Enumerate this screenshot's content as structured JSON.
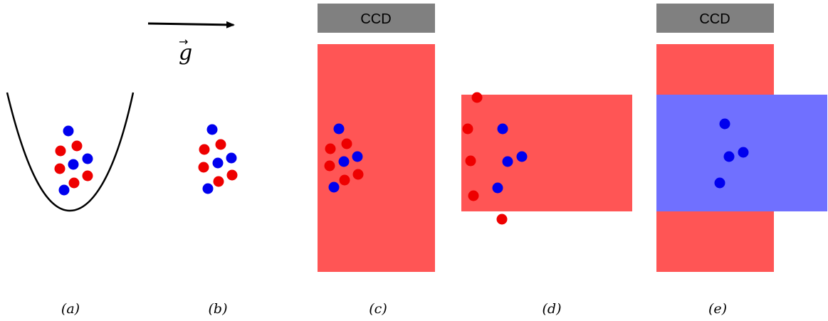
{
  "colors": {
    "atom_red": "#ee0000",
    "atom_blue": "#0000ee",
    "beam_red": "#ff5555",
    "beam_blue": "#7070ff",
    "ccd": "#808080",
    "ink": "#000000"
  },
  "gravity": {
    "symbol": "g",
    "vector_mark": "→"
  },
  "panels": [
    {
      "id": "a",
      "label": "(a)",
      "element": "harmonic trap potential with atom cloud"
    },
    {
      "id": "b",
      "label": "(b)",
      "element": "free atom cloud"
    },
    {
      "id": "c",
      "label": "(c)",
      "ccd_label": "CCD"
    },
    {
      "id": "d",
      "label": "(d)"
    },
    {
      "id": "e",
      "label": "(e)",
      "ccd_label": "CCD"
    }
  ],
  "icons": [
    "gravity-arrow-icon",
    "trap-potential-icon"
  ]
}
